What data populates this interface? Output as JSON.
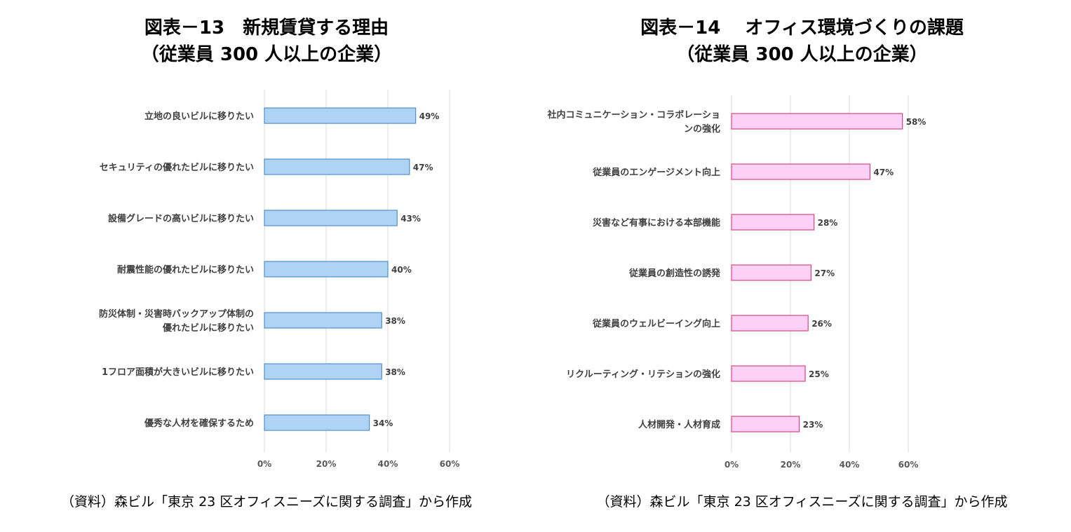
{
  "chart_data": [
    {
      "type": "bar",
      "orientation": "horizontal",
      "title": "図表－13　新規賃貸する理由",
      "subtitle": "（従業員 300 人以上の企業）",
      "categories": [
        "立地の良いビルに移りたい",
        "セキュリティの優れたビルに移りたい",
        "設備グレードの高いビルに移りたい",
        "耐震性能の優れたビルに移りたい",
        [
          "防災体制・災害時バックアップ体制の",
          "優れたビルに移りたい"
        ],
        "1フロア面積が大きいビルに移りたい",
        "優秀な人材を確保するため"
      ],
      "values": [
        49,
        47,
        43,
        40,
        38,
        38,
        34
      ],
      "data_labels": [
        "49%",
        "47%",
        "43%",
        "40%",
        "38%",
        "38%",
        "34%"
      ],
      "xlim": [
        0,
        60
      ],
      "x_ticks": [
        "0%",
        "20%",
        "40%",
        "60%"
      ],
      "grid": true,
      "bar_color": "#aed3f5",
      "bar_border": "#4f8fc9",
      "source": "（資料）森ビル「東京 23 区オフィスニーズに関する調査」から作成"
    },
    {
      "type": "bar",
      "orientation": "horizontal",
      "title": "図表－14　 オフィス環境づくりの課題",
      "subtitle": "（従業員 300 人以上の企業）",
      "categories": [
        [
          "社内コミュニケーション・コラボレーショ",
          "ンの強化"
        ],
        "従業員のエンゲージメント向上",
        "災害など有事における本部機能",
        "従業員の創造性の誘発",
        "従業員のウェルビーイング向上",
        "リクルーティング・リテションの強化",
        "人材開発・人材育成"
      ],
      "values": [
        58,
        47,
        28,
        27,
        26,
        25,
        23
      ],
      "data_labels": [
        "58%",
        "47%",
        "28%",
        "27%",
        "26%",
        "25%",
        "23%"
      ],
      "xlim": [
        0,
        60
      ],
      "x_ticks": [
        "0%",
        "20%",
        "40%",
        "60%"
      ],
      "grid": true,
      "bar_color": "#fdd0f7",
      "bar_border": "#e0447e",
      "source": "（資料）森ビル「東京 23 区オフィスニーズに関する調査」から作成"
    }
  ]
}
